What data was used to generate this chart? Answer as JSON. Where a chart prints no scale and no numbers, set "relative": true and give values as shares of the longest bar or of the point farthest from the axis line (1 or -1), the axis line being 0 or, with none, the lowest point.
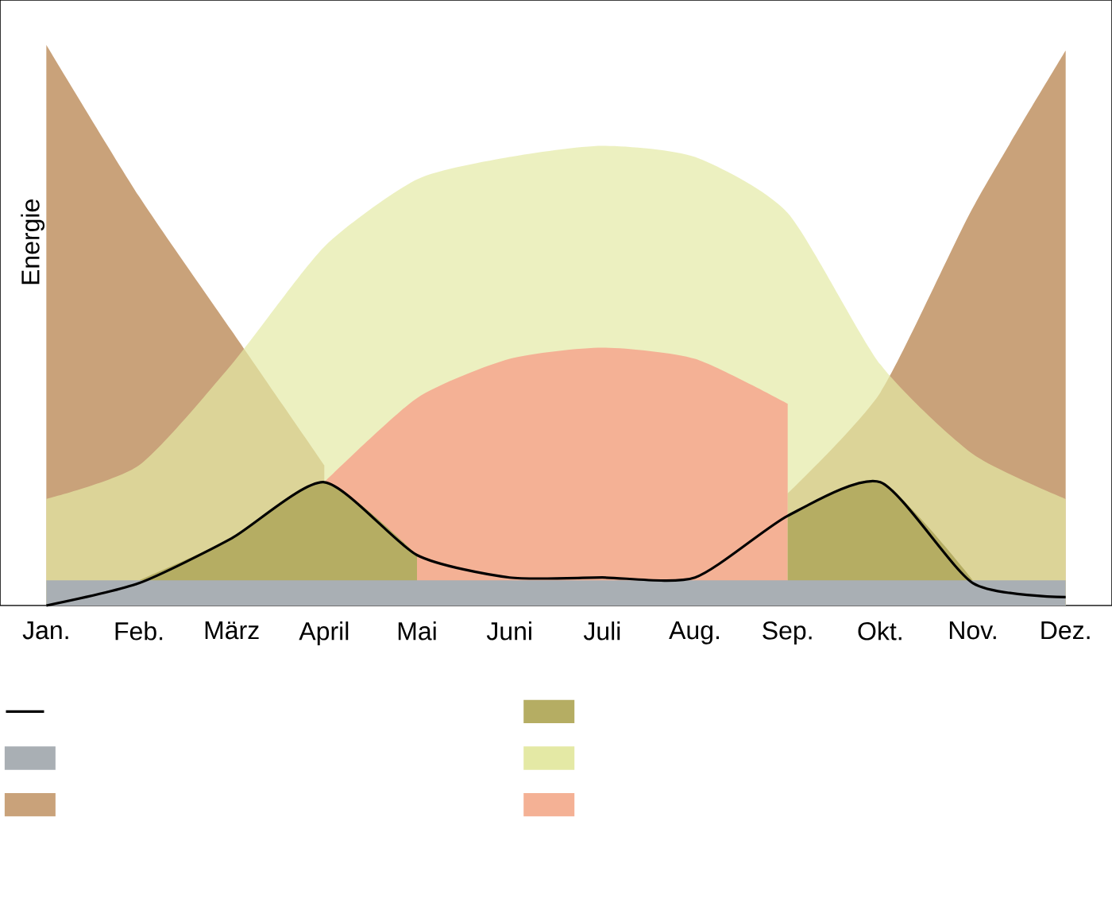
{
  "chart_data": {
    "type": "area",
    "relative": true,
    "ylabel": "Energie",
    "categories": [
      "Jan.",
      "Feb.",
      "März",
      "April",
      "Mai",
      "Juni",
      "Juli",
      "Aug.",
      "Sep.",
      "Okt.",
      "Nov.",
      "Dez."
    ],
    "series": [
      {
        "type": "line",
        "color": "#000000",
        "values": [
          0.0,
          0.04,
          0.12,
          0.22,
          0.09,
          0.05,
          0.05,
          0.05,
          0.16,
          0.22,
          0.04,
          0.015
        ]
      },
      {
        "color": "#a9afb4",
        "values": [
          0.045,
          0.045,
          0.045,
          0.045,
          0.045,
          0.045,
          0.045,
          0.045,
          0.045,
          0.045,
          0.045,
          0.045
        ]
      },
      {
        "color": "#c9a27a",
        "values": [
          1.0,
          0.73,
          0.49,
          0.25,
          null,
          null,
          null,
          null,
          0.2,
          0.38,
          0.71,
          0.99
        ]
      },
      {
        "color": "#b5ad63",
        "values": [
          null,
          0.045,
          0.12,
          0.22,
          0.09,
          null,
          null,
          null,
          0.16,
          0.22,
          0.045,
          null
        ]
      },
      {
        "color": "#e4e9a5",
        "values": [
          0.19,
          0.25,
          0.43,
          0.64,
          0.76,
          0.8,
          0.82,
          0.8,
          0.7,
          0.43,
          0.27,
          0.19
        ]
      },
      {
        "color": "#f4b195",
        "values": [
          null,
          null,
          null,
          0.22,
          0.37,
          0.44,
          0.46,
          0.44,
          0.36,
          null,
          null,
          null
        ]
      }
    ]
  }
}
